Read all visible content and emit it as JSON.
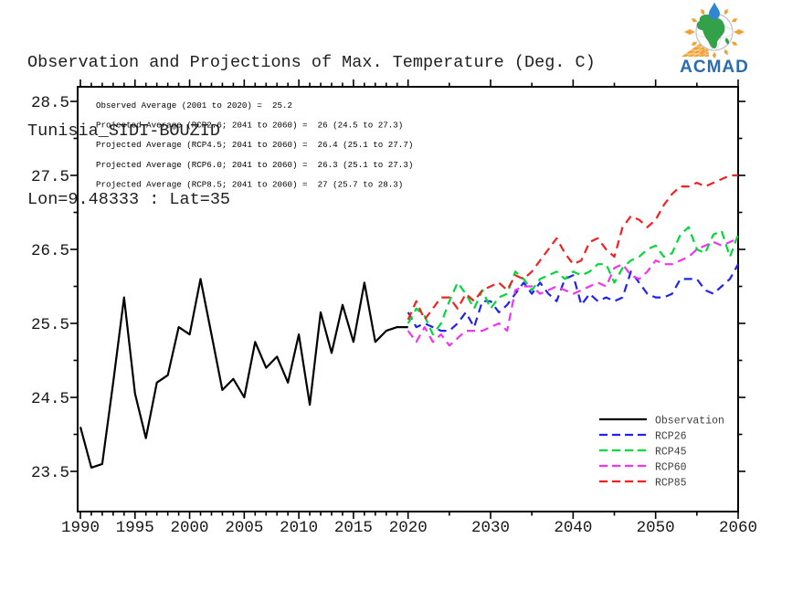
{
  "header": {
    "title_line1": "Observation and Projections of Max. Temperature (Deg. C)",
    "title_line2": "Tunisia_SIDI-BOUZID",
    "title_line3": "Lon=9.48333 : Lat=35",
    "logo_text": "ACMAD"
  },
  "chart_data": {
    "type": "line",
    "title": "Observation and Projections of Max. Temperature (Deg. C)",
    "location": "Tunisia_SIDI-BOUZID",
    "coordinates": "Lon=9.48333 : Lat=35",
    "annotations": [
      "Observed Average (2001 to 2020) =  25.2",
      "Projected Average (RCP2.6; 2041 to 2060) =  26 (24.5 to 27.3)",
      "Projected Average (RCP4.5; 2041 to 2060) =  26.4 (25.1 to 27.7)",
      "Projected Average (RCP6.0; 2041 to 2060) =  26.3 (25.1 to 27.3)",
      "Projected Average (RCP8.5; 2041 to 2060) =  27 (25.7 to 28.3)"
    ],
    "x_axis": {
      "range": [
        1990,
        2060
      ],
      "break_year": 2020,
      "label_obs": [
        1990,
        1995,
        2000,
        2005,
        2010,
        2015,
        2020
      ],
      "label_proj": [
        2030,
        2040,
        2050,
        2060
      ],
      "minor_tick_step_obs": 1,
      "minor_tick_step_proj": 5,
      "scale_note": "piecewise linear: 1990-2020 plotted wider per year than 2020-2060"
    },
    "y_axis": {
      "unit": "Deg. C",
      "range": [
        22.95,
        28.7
      ],
      "ticks": [
        23.5,
        24.5,
        25.5,
        26.5,
        27.5,
        28.5
      ],
      "minor_ticks": [
        24,
        25,
        26,
        27,
        28
      ]
    },
    "grid": false,
    "legend_position": "inside bottom-right",
    "series": [
      {
        "name": "Observation",
        "color": "#000000",
        "style": "solid",
        "x_start": 1990,
        "x_step": 1,
        "values": [
          24.1,
          23.55,
          23.6,
          24.7,
          25.85,
          24.55,
          23.95,
          24.7,
          24.8,
          25.45,
          25.35,
          26.1,
          25.35,
          24.6,
          24.75,
          24.5,
          25.25,
          24.9,
          25.05,
          24.7,
          25.35,
          24.4,
          25.65,
          25.1,
          25.75,
          25.25,
          26.05,
          25.25,
          25.4,
          25.45,
          25.45
        ]
      },
      {
        "name": "RCP26",
        "color": "#2222f0",
        "style": "dashed",
        "x_start": 2020,
        "x_step": 1,
        "values": [
          25.65,
          25.45,
          25.5,
          25.45,
          25.4,
          25.4,
          25.5,
          25.65,
          25.45,
          25.8,
          25.8,
          25.65,
          25.75,
          25.9,
          26.05,
          25.9,
          26.05,
          25.9,
          25.8,
          26.1,
          26.15,
          25.75,
          25.9,
          25.8,
          25.85,
          25.8,
          25.85,
          26.2,
          26.05,
          25.9,
          25.85,
          25.85,
          25.9,
          26.1,
          26.1,
          26.1,
          25.95,
          25.9,
          26.0,
          26.1,
          26.3
        ]
      },
      {
        "name": "RCP45",
        "color": "#00d938",
        "style": "dashed",
        "x_start": 2020,
        "x_step": 1,
        "values": [
          25.5,
          25.7,
          25.6,
          25.35,
          25.5,
          25.8,
          26.05,
          25.9,
          25.7,
          25.95,
          25.7,
          25.85,
          25.9,
          26.2,
          26.1,
          25.95,
          26.1,
          26.15,
          26.2,
          26.1,
          26.2,
          26.15,
          26.2,
          26.3,
          26.3,
          26.05,
          26.25,
          26.35,
          26.4,
          26.5,
          26.55,
          26.4,
          26.45,
          26.7,
          26.8,
          26.5,
          26.45,
          26.7,
          26.75,
          26.4,
          26.7
        ]
      },
      {
        "name": "RCP60",
        "color": "#f233f2",
        "style": "dashed",
        "x_start": 2020,
        "x_step": 1,
        "values": [
          25.4,
          25.25,
          25.45,
          25.25,
          25.35,
          25.2,
          25.3,
          25.4,
          25.4,
          25.4,
          25.45,
          25.5,
          25.4,
          25.95,
          26.0,
          26.0,
          25.9,
          25.95,
          26.0,
          25.95,
          25.9,
          25.95,
          26.0,
          26.05,
          26.0,
          26.25,
          26.3,
          26.15,
          26.1,
          26.2,
          26.35,
          26.3,
          26.3,
          26.35,
          26.4,
          26.5,
          26.55,
          26.6,
          26.55,
          26.6,
          26.65
        ]
      },
      {
        "name": "RCP85",
        "color": "#f22020",
        "style": "dashed",
        "x_start": 2020,
        "x_step": 1,
        "values": [
          25.55,
          25.8,
          25.55,
          25.7,
          25.85,
          25.85,
          25.7,
          25.9,
          25.8,
          25.95,
          26.0,
          26.05,
          25.95,
          26.15,
          26.1,
          26.2,
          26.35,
          26.5,
          26.65,
          26.45,
          26.3,
          26.35,
          26.6,
          26.65,
          26.5,
          26.4,
          26.8,
          26.95,
          26.9,
          26.8,
          26.9,
          27.1,
          27.25,
          27.35,
          27.35,
          27.4,
          27.35,
          27.4,
          27.45,
          27.5,
          27.5
        ]
      }
    ]
  },
  "legend": {
    "items": [
      {
        "label": "Observation",
        "color": "#000000",
        "style": "solid"
      },
      {
        "label": "RCP26",
        "color": "#2222f0",
        "style": "dashed"
      },
      {
        "label": "RCP45",
        "color": "#00d938",
        "style": "dashed"
      },
      {
        "label": "RCP60",
        "color": "#f233f2",
        "style": "dashed"
      },
      {
        "label": "RCP85",
        "color": "#f22020",
        "style": "dashed"
      }
    ]
  },
  "logo_colors": {
    "africa_green": "#33a04a",
    "ray_orange": "#f0a132",
    "drop_blue": "#2f86d2",
    "wordmark_blue": "#2b6cb0"
  }
}
